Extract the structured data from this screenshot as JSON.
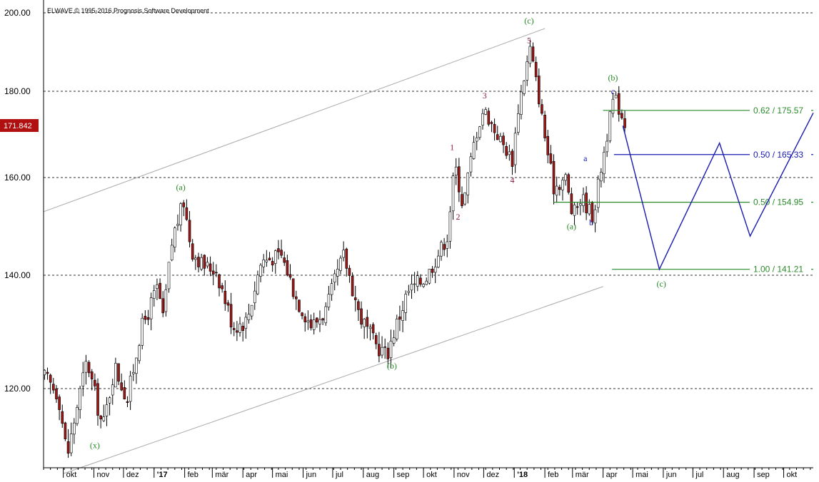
{
  "copyright": "ELWAVE,© 1995-2016 Prognosis Software Development",
  "current_price": "171.842",
  "colors": {
    "up": "#ffffff",
    "down": "#a01818",
    "wick": "#000000",
    "green": "#2a8a2a",
    "blue": "#1a1ab0",
    "purple": "#8b1a3a",
    "channel": "#aaaaaa",
    "price_tag": "#b01010"
  },
  "chart_data": {
    "type": "candlestick",
    "title": "",
    "xlabel": "",
    "ylabel": "",
    "ylim": [
      105,
      200
    ],
    "xlim": [
      "2016-09-11",
      "2018-10-31"
    ],
    "y_ticks": [
      {
        "value": 200,
        "label": "200.00"
      },
      {
        "value": 180,
        "label": "180.00"
      },
      {
        "value": 160,
        "label": "160.00"
      },
      {
        "value": 140,
        "label": "140.00"
      },
      {
        "value": 120,
        "label": "120.00"
      }
    ],
    "x_ticks": [
      {
        "date": "2016-10-01",
        "label": "okt"
      },
      {
        "date": "2016-11-01",
        "label": "nov"
      },
      {
        "date": "2016-12-01",
        "label": "dez"
      },
      {
        "date": "2017-01-01",
        "label": "'17",
        "year": true
      },
      {
        "date": "2017-02-01",
        "label": "feb"
      },
      {
        "date": "2017-03-01",
        "label": "mär"
      },
      {
        "date": "2017-04-01",
        "label": "apr"
      },
      {
        "date": "2017-05-01",
        "label": "mai"
      },
      {
        "date": "2017-06-01",
        "label": "jun"
      },
      {
        "date": "2017-07-01",
        "label": "jul"
      },
      {
        "date": "2017-08-01",
        "label": "aug"
      },
      {
        "date": "2017-09-01",
        "label": "sep"
      },
      {
        "date": "2017-10-01",
        "label": "okt"
      },
      {
        "date": "2017-11-01",
        "label": "nov"
      },
      {
        "date": "2017-12-01",
        "label": "dez"
      },
      {
        "date": "2018-01-01",
        "label": "'18",
        "year": true
      },
      {
        "date": "2018-02-01",
        "label": "feb"
      },
      {
        "date": "2018-03-01",
        "label": "mär"
      },
      {
        "date": "2018-04-01",
        "label": "apr"
      },
      {
        "date": "2018-05-01",
        "label": "mai"
      },
      {
        "date": "2018-06-01",
        "label": "jun"
      },
      {
        "date": "2018-07-01",
        "label": "jul"
      },
      {
        "date": "2018-08-01",
        "label": "aug"
      },
      {
        "date": "2018-09-01",
        "label": "sep"
      },
      {
        "date": "2018-10-01",
        "label": "okt"
      }
    ],
    "price_path": [
      [
        "2016-09-12",
        122
      ],
      [
        "2016-09-26",
        119
      ],
      [
        "2016-10-05",
        108
      ],
      [
        "2016-10-15",
        117
      ],
      [
        "2016-10-25",
        125
      ],
      [
        "2016-11-02",
        119
      ],
      [
        "2016-11-10",
        113
      ],
      [
        "2016-11-22",
        124
      ],
      [
        "2016-12-05",
        118
      ],
      [
        "2016-12-18",
        130
      ],
      [
        "2017-01-05",
        138
      ],
      [
        "2017-01-10",
        132
      ],
      [
        "2017-01-20",
        148
      ],
      [
        "2017-01-31",
        155
      ],
      [
        "2017-02-08",
        145
      ],
      [
        "2017-02-20",
        142
      ],
      [
        "2017-03-05",
        141
      ],
      [
        "2017-03-22",
        131
      ],
      [
        "2017-04-05",
        132
      ],
      [
        "2017-04-20",
        143
      ],
      [
        "2017-05-10",
        144
      ],
      [
        "2017-05-25",
        136
      ],
      [
        "2017-06-10",
        131
      ],
      [
        "2017-06-25",
        134
      ],
      [
        "2017-07-05",
        140
      ],
      [
        "2017-07-12",
        144
      ],
      [
        "2017-07-28",
        133
      ],
      [
        "2017-08-12",
        128
      ],
      [
        "2017-08-25",
        126
      ],
      [
        "2017-09-01",
        130
      ],
      [
        "2017-09-15",
        137
      ],
      [
        "2017-10-05",
        140
      ],
      [
        "2017-10-25",
        148
      ],
      [
        "2017-11-02",
        163
      ],
      [
        "2017-11-10",
        154
      ],
      [
        "2017-11-22",
        169
      ],
      [
        "2017-12-01",
        176
      ],
      [
        "2017-12-12",
        171
      ],
      [
        "2017-12-30",
        164
      ],
      [
        "2018-01-05",
        176
      ],
      [
        "2018-01-17",
        191
      ],
      [
        "2018-01-25",
        180
      ],
      [
        "2018-02-02",
        168
      ],
      [
        "2018-02-10",
        158
      ],
      [
        "2018-02-22",
        160
      ],
      [
        "2018-03-01",
        152
      ],
      [
        "2018-03-10",
        156
      ],
      [
        "2018-03-22",
        152
      ],
      [
        "2018-04-02",
        166
      ],
      [
        "2018-04-12",
        179
      ],
      [
        "2018-04-24",
        172
      ]
    ],
    "series": [
      {
        "name": "",
        "kind": "projection",
        "color": "blue",
        "points": [
          [
            "2018-04-21",
            172
          ],
          [
            "2018-05-28",
            141.21
          ],
          [
            "2018-07-28",
            168
          ],
          [
            "2018-08-28",
            148
          ],
          [
            "2018-10-31",
            175
          ]
        ]
      },
      {
        "name": "",
        "kind": "channel",
        "color": "channel",
        "points": [
          [
            "2016-09-11",
            153
          ],
          [
            "2018-02-01",
            196
          ]
        ]
      },
      {
        "name": "",
        "kind": "channel",
        "color": "channel",
        "points": [
          [
            "2016-10-01",
            105
          ],
          [
            "2018-04-01",
            138
          ]
        ]
      }
    ],
    "fib_levels": [
      {
        "ratio": "0.62",
        "value": 175.57,
        "label": "0.62 / 175.57",
        "color": "green",
        "from": "2018-04-01",
        "to": "2018-10-31"
      },
      {
        "ratio": "0.50",
        "value": 165.33,
        "label": "0.50 / 165.33",
        "color": "blue",
        "from": "2018-04-12",
        "to": "2018-10-31"
      },
      {
        "ratio": "0.50",
        "value": 154.95,
        "label": "0.50 / 154.95",
        "color": "green",
        "from": "2018-02-10",
        "to": "2018-10-31"
      },
      {
        "ratio": "1.00",
        "value": 141.21,
        "label": "1.00 / 141.21",
        "color": "green",
        "from": "2018-04-10",
        "to": "2018-10-31"
      }
    ],
    "annotations": [
      {
        "label": "(x)",
        "date": "2016-11-02",
        "value": 110,
        "color": "green"
      },
      {
        "label": "(a)",
        "date": "2017-01-28",
        "value": 158,
        "color": "green"
      },
      {
        "label": "(b)",
        "date": "2017-08-30",
        "value": 124,
        "color": "green"
      },
      {
        "label": "1",
        "date": "2017-10-30",
        "value": 167,
        "color": "purple"
      },
      {
        "label": "2",
        "date": "2017-11-05",
        "value": 152,
        "color": "purple"
      },
      {
        "label": "3",
        "date": "2017-12-02",
        "value": 179,
        "color": "purple"
      },
      {
        "label": "4",
        "date": "2017-12-30",
        "value": 159.5,
        "color": "purple"
      },
      {
        "label": "5",
        "date": "2018-01-16",
        "value": 193,
        "color": "purple"
      },
      {
        "label": "(c)",
        "date": "2018-01-16",
        "value": 198,
        "color": "green"
      },
      {
        "label": "(a)",
        "date": "2018-02-28",
        "value": 150,
        "color": "green"
      },
      {
        "label": "a",
        "date": "2018-03-14",
        "value": 164.5,
        "color": "blue"
      },
      {
        "label": "b",
        "date": "2018-03-20",
        "value": 150.8,
        "color": "blue"
      },
      {
        "label": "(b)",
        "date": "2018-04-11",
        "value": 183.5,
        "color": "green"
      },
      {
        "label": "c",
        "date": "2018-04-11",
        "value": 180,
        "color": "blue"
      },
      {
        "label": "(c)",
        "date": "2018-05-30",
        "value": 138.5,
        "color": "green"
      }
    ]
  }
}
